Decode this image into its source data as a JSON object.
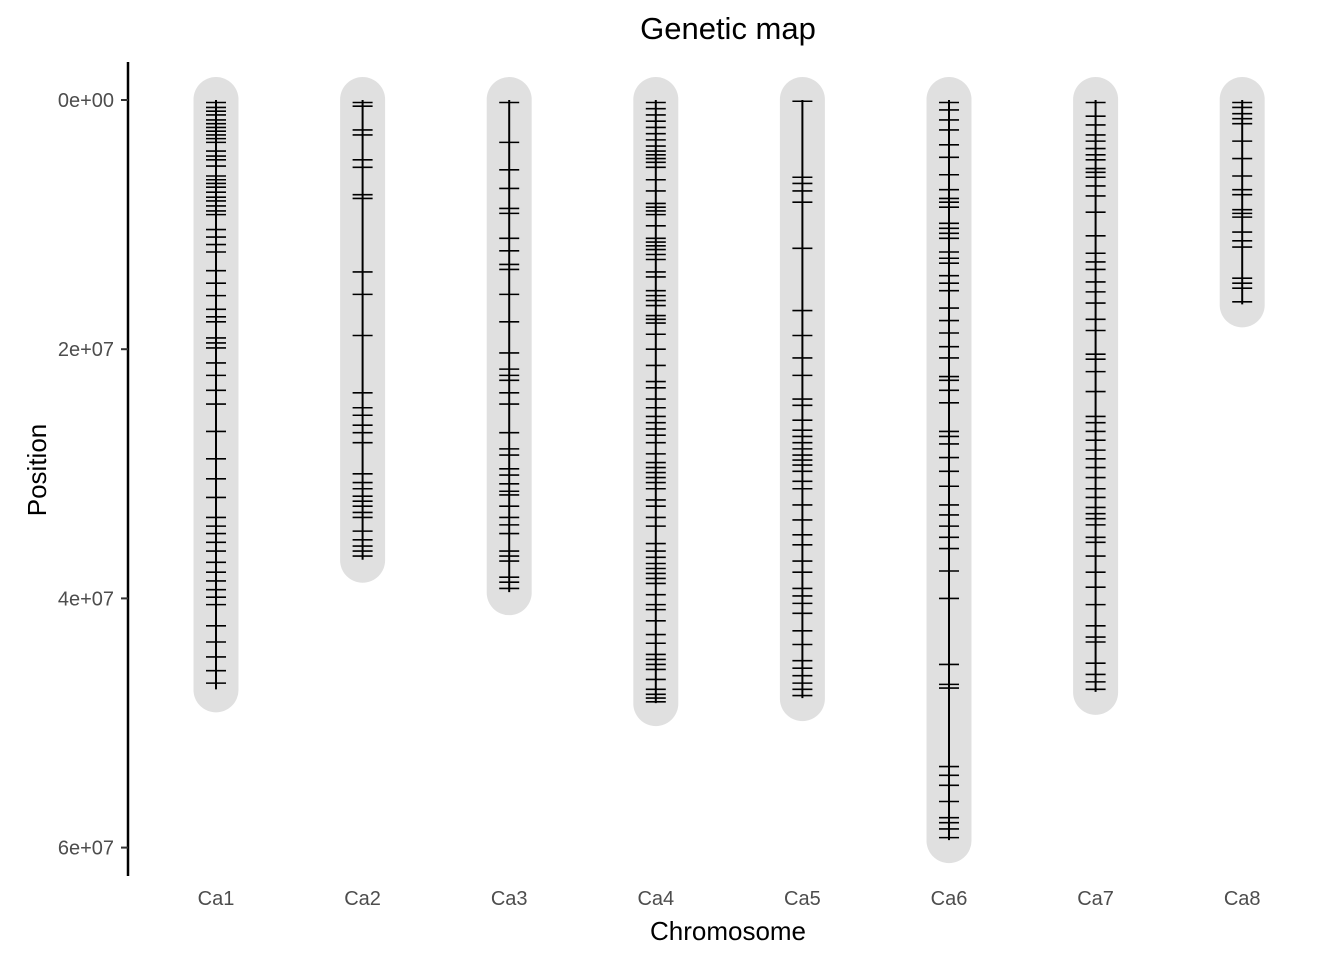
{
  "chart_data": {
    "type": "genetic-map",
    "title": "Genetic map",
    "xlabel": "Chromosome",
    "ylabel": "Position",
    "ylim": [
      0,
      62000000
    ],
    "y_reversed": true,
    "yticks": [
      0,
      20000000,
      40000000,
      60000000
    ],
    "ytick_labels": [
      "0e+00",
      "2e+07",
      "4e+07",
      "6e+07"
    ],
    "grid": false,
    "chromosome_fill": "#e0e0e0",
    "marker_color": "#000000",
    "chromosomes": [
      {
        "name": "Ca1",
        "length": 47300000,
        "markers": [
          200000,
          600000,
          900000,
          1200000,
          1600000,
          1900000,
          2200000,
          2500000,
          2800000,
          3100000,
          3400000,
          4100000,
          4500000,
          4800000,
          5300000,
          6100000,
          6400000,
          6700000,
          7000000,
          7400000,
          7800000,
          8100000,
          8500000,
          8900000,
          9200000,
          10400000,
          11000000,
          11600000,
          12200000,
          13700000,
          14700000,
          15700000,
          16800000,
          17400000,
          17800000,
          19100000,
          19500000,
          19900000,
          21100000,
          22100000,
          23300000,
          24400000,
          26600000,
          28800000,
          30400000,
          31900000,
          33500000,
          34200000,
          34800000,
          35500000,
          36200000,
          37100000,
          37900000,
          38600000,
          39300000,
          39900000,
          40500000,
          42200000,
          43500000,
          44700000,
          45800000,
          46800000
        ]
      },
      {
        "name": "Ca2",
        "length": 36900000,
        "markers": [
          200000,
          500000,
          2400000,
          2800000,
          4800000,
          5400000,
          7600000,
          7900000,
          13800000,
          15600000,
          18900000,
          23500000,
          24700000,
          25300000,
          26100000,
          26700000,
          27500000,
          30000000,
          30700000,
          31200000,
          31800000,
          32200000,
          32600000,
          33100000,
          33500000,
          34600000,
          35300000,
          35800000,
          36200000,
          36600000
        ]
      },
      {
        "name": "Ca3",
        "length": 39500000,
        "markers": [
          200000,
          3400000,
          5600000,
          7100000,
          8700000,
          9100000,
          11100000,
          12100000,
          13200000,
          13600000,
          15600000,
          17800000,
          20300000,
          21600000,
          22100000,
          22500000,
          23500000,
          24400000,
          26700000,
          28000000,
          28500000,
          29600000,
          30100000,
          30800000,
          31400000,
          31700000,
          32600000,
          33500000,
          34100000,
          34800000,
          36200000,
          36600000,
          37000000,
          38300000,
          38700000,
          39200000
        ]
      },
      {
        "name": "Ca4",
        "length": 48400000,
        "markers": [
          200000,
          700000,
          1200000,
          1700000,
          2200000,
          2700000,
          3200000,
          3700000,
          4100000,
          4400000,
          4700000,
          5000000,
          5400000,
          6400000,
          7300000,
          8300000,
          8600000,
          8900000,
          9200000,
          10100000,
          11100000,
          11400000,
          11700000,
          12000000,
          12400000,
          12800000,
          13800000,
          14200000,
          15300000,
          15700000,
          16100000,
          16500000,
          17300000,
          17600000,
          17900000,
          18800000,
          20000000,
          21300000,
          22600000,
          23100000,
          24000000,
          24700000,
          25400000,
          25900000,
          26400000,
          26900000,
          27500000,
          28400000,
          29100000,
          29500000,
          29900000,
          30300000,
          30700000,
          31200000,
          32100000,
          32600000,
          33500000,
          34200000,
          35600000,
          36200000,
          36700000,
          37200000,
          37600000,
          38000000,
          38400000,
          38800000,
          39700000,
          40500000,
          40900000,
          41800000,
          42900000,
          43600000,
          44500000,
          44900000,
          45300000,
          45700000,
          46500000,
          47300000,
          47700000,
          48000000,
          48300000
        ]
      },
      {
        "name": "Ca5",
        "length": 48000000,
        "markers": [
          100000,
          6200000,
          6700000,
          7300000,
          8200000,
          11900000,
          16900000,
          18900000,
          20700000,
          22100000,
          24000000,
          24500000,
          25700000,
          26500000,
          27000000,
          27500000,
          28000000,
          28500000,
          28900000,
          29300000,
          29800000,
          30600000,
          31200000,
          32500000,
          33700000,
          34900000,
          35700000,
          37000000,
          37900000,
          39200000,
          39800000,
          40400000,
          41200000,
          42600000,
          43700000,
          45000000,
          45600000,
          46200000,
          46800000,
          47300000,
          47800000
        ]
      },
      {
        "name": "Ca6",
        "length": 59400000,
        "markers": [
          200000,
          800000,
          1600000,
          2400000,
          3600000,
          4600000,
          6000000,
          7200000,
          7900000,
          8200000,
          8600000,
          9900000,
          10300000,
          10700000,
          11100000,
          12200000,
          12700000,
          13100000,
          14100000,
          14700000,
          15300000,
          16700000,
          17700000,
          18700000,
          19800000,
          20700000,
          22200000,
          22500000,
          23300000,
          24300000,
          26600000,
          27000000,
          27600000,
          28700000,
          29800000,
          31000000,
          32500000,
          33300000,
          34200000,
          35100000,
          36000000,
          37800000,
          40000000,
          45300000,
          46900000,
          47200000,
          53500000,
          54200000,
          55000000,
          56300000,
          57600000,
          58000000,
          58500000,
          59200000
        ]
      },
      {
        "name": "Ca7",
        "length": 47500000,
        "markers": [
          200000,
          1300000,
          2000000,
          2800000,
          3300000,
          3900000,
          4400000,
          4800000,
          5500000,
          5800000,
          6200000,
          6900000,
          7700000,
          9000000,
          10900000,
          12300000,
          13000000,
          13600000,
          14600000,
          15400000,
          16300000,
          17600000,
          18500000,
          20400000,
          20800000,
          21800000,
          23400000,
          25400000,
          25900000,
          26600000,
          27300000,
          28100000,
          28800000,
          29500000,
          30300000,
          31200000,
          31900000,
          32700000,
          33200000,
          33600000,
          34100000,
          35100000,
          35500000,
          36600000,
          37900000,
          39100000,
          40500000,
          42200000,
          43100000,
          43500000,
          45200000,
          46100000,
          46700000,
          47300000
        ]
      },
      {
        "name": "Ca8",
        "length": 16400000,
        "markers": [
          200000,
          600000,
          1100000,
          1500000,
          1900000,
          3300000,
          4700000,
          6100000,
          7200000,
          7600000,
          8800000,
          9100000,
          9400000,
          10600000,
          11300000,
          11800000,
          14300000,
          14700000,
          15100000,
          16200000
        ]
      }
    ]
  }
}
